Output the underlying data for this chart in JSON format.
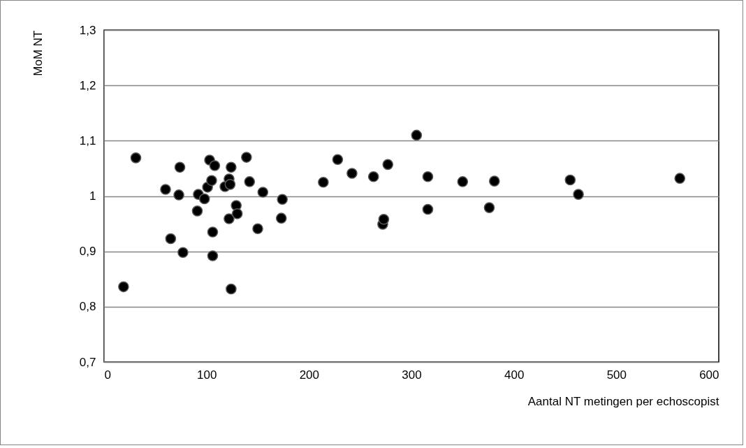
{
  "chart_data": {
    "type": "scatter",
    "xlabel": "Aantal NT metingen per echoscopist",
    "ylabel": "MoM NT",
    "x": [
      19,
      31,
      60,
      65,
      73,
      74,
      77,
      91,
      92,
      98,
      101,
      103,
      105,
      106,
      106,
      108,
      118,
      122,
      122,
      123,
      124,
      124,
      129,
      130,
      139,
      142,
      150,
      155,
      173,
      174,
      214,
      228,
      242,
      263,
      272,
      273,
      277,
      305,
      316,
      316,
      350,
      376,
      381,
      455,
      463,
      562
    ],
    "series": [
      {
        "color": "#000000",
        "values": [
          0.836,
          1.069,
          1.012,
          0.923,
          1.002,
          1.052,
          0.898,
          0.973,
          1.003,
          0.995,
          1.016,
          1.065,
          1.028,
          0.935,
          0.892,
          1.055,
          1.017,
          1.031,
          0.959,
          1.021,
          1.052,
          0.832,
          0.983,
          0.968,
          1.07,
          1.026,
          0.941,
          1.007,
          0.96,
          0.994,
          1.025,
          1.066,
          1.041,
          1.035,
          0.949,
          0.958,
          1.057,
          1.11,
          1.035,
          0.976,
          1.026,
          0.979,
          1.027,
          1.029,
          1.003,
          1.032
        ]
      }
    ],
    "xlim": [
      0,
      600
    ],
    "xticks": [
      0,
      100,
      200,
      300,
      400,
      500,
      600
    ],
    "ylim": [
      0.7,
      1.3
    ],
    "yticks": [
      {
        "value": 0.7,
        "label": "0,7"
      },
      {
        "value": 0.8,
        "label": "0,8"
      },
      {
        "value": 0.9,
        "label": "0,9"
      },
      {
        "value": 1,
        "label": "1"
      },
      {
        "value": 1.1,
        "label": "1,1"
      },
      {
        "value": 1.2,
        "label": "1,2"
      },
      {
        "value": 1.3,
        "label": "1,3"
      }
    ],
    "grid": "y",
    "marker": "circle"
  }
}
